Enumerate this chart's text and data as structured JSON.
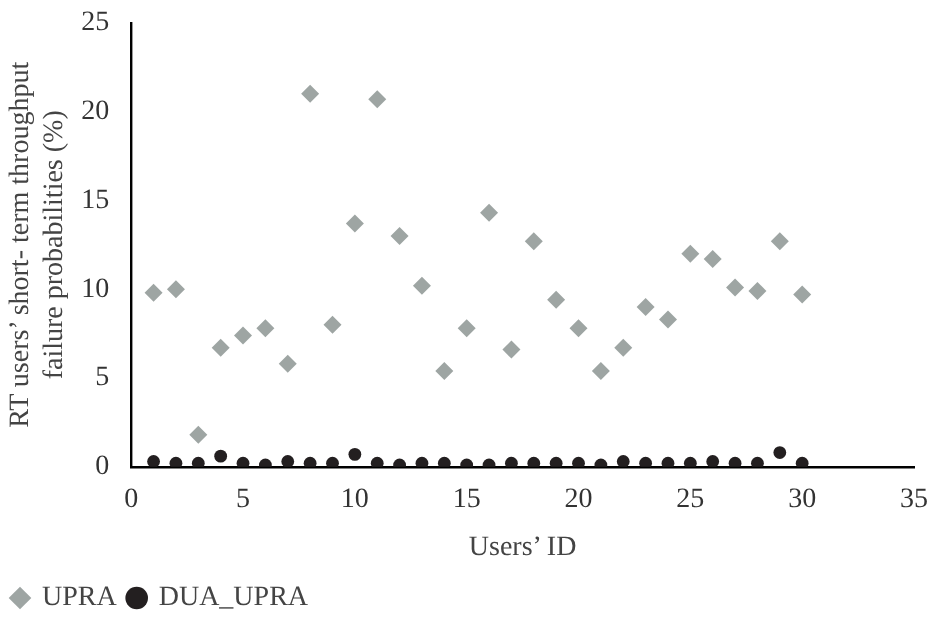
{
  "chart_data": {
    "type": "scatter",
    "xlabel": "Users’ ID",
    "ylabel": "RT users’ short- term throughput\nfailure probabilities (%)",
    "x": [
      1,
      2,
      3,
      4,
      5,
      6,
      7,
      8,
      9,
      10,
      11,
      12,
      13,
      14,
      15,
      16,
      17,
      18,
      19,
      20,
      21,
      22,
      23,
      24,
      25,
      26,
      27,
      28,
      29,
      30
    ],
    "series": [
      {
        "name": "UPRA",
        "color": "#9ea5a3",
        "marker": "diamond",
        "values": [
          9.8,
          10,
          1.8,
          6.7,
          7.4,
          7.8,
          5.8,
          21,
          8,
          13.7,
          20.7,
          13,
          10.2,
          5.4,
          7.8,
          14.3,
          6.6,
          12.7,
          9.4,
          7.8,
          5.4,
          6.7,
          9,
          8.3,
          12,
          11.7,
          10.1,
          9.9,
          12.7,
          9.7
        ]
      },
      {
        "name": "DUA_UPRA",
        "color": "#231f20",
        "marker": "circle",
        "values": [
          0.3,
          0.2,
          0.2,
          0.6,
          0.2,
          0.1,
          0.3,
          0.2,
          0.2,
          0.7,
          0.2,
          0.1,
          0.2,
          0.2,
          0.1,
          0.1,
          0.2,
          0.2,
          0.2,
          0.2,
          0.1,
          0.3,
          0.2,
          0.2,
          0.2,
          0.3,
          0.2,
          0.2,
          0.8,
          0.2
        ]
      }
    ],
    "xlim": [
      0,
      35
    ],
    "xticks": [
      0,
      5,
      10,
      15,
      20,
      25,
      30,
      35
    ],
    "ylim": [
      0,
      25
    ],
    "yticks": [
      0,
      5,
      10,
      15,
      20,
      25
    ],
    "grid": false,
    "legend": "bottom"
  }
}
